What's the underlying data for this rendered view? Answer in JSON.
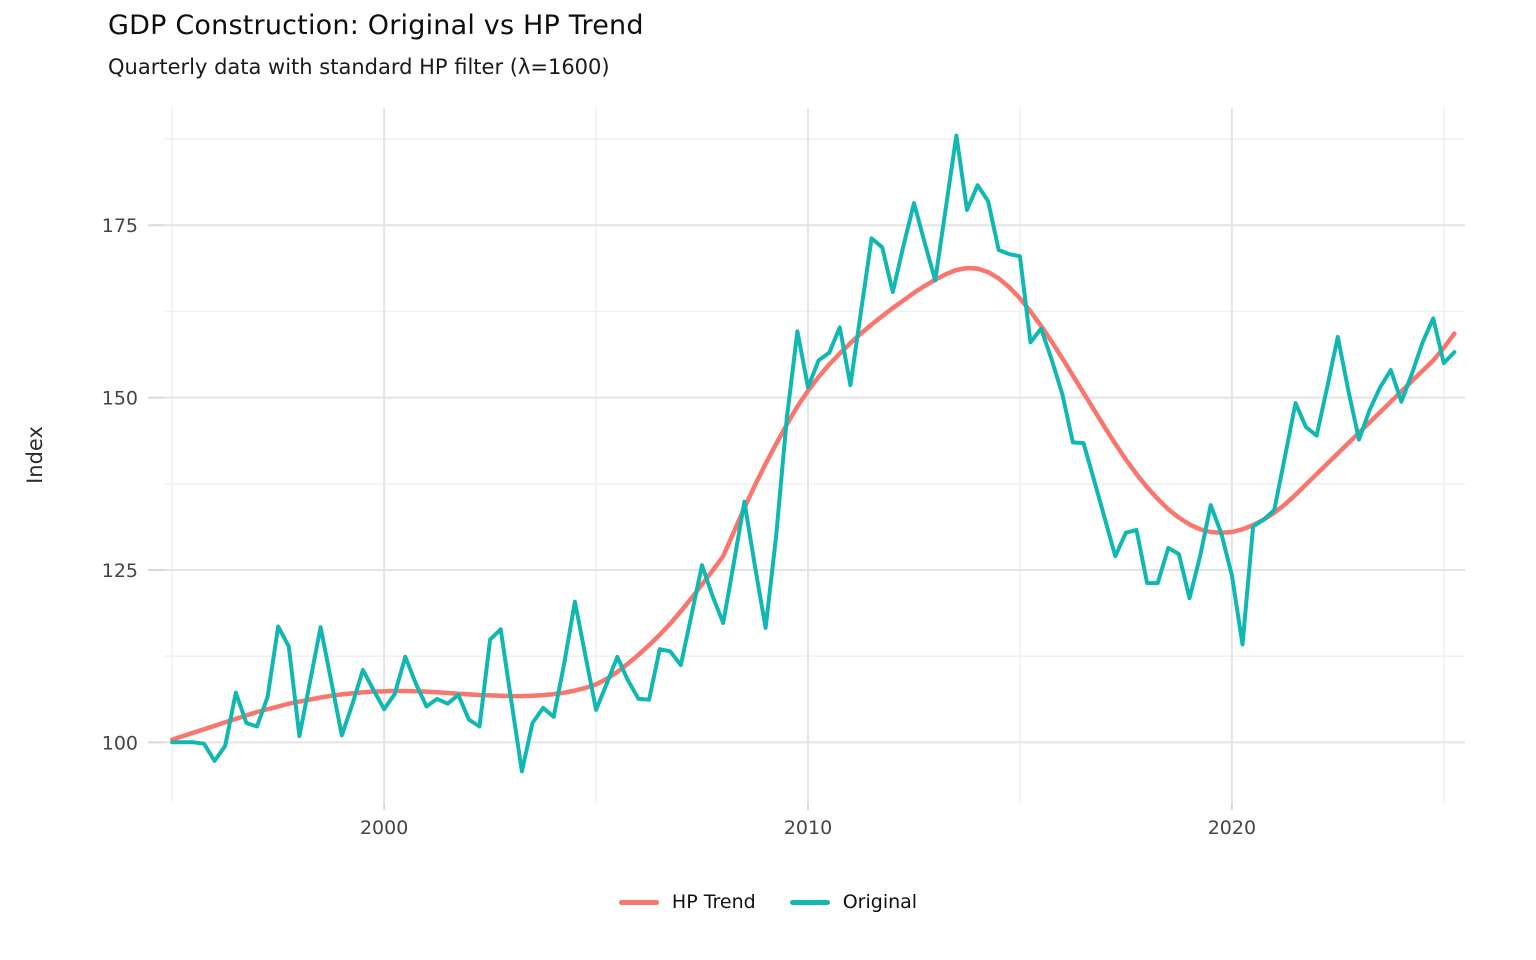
{
  "header": {
    "title": "GDP Construction: Original vs HP Trend",
    "subtitle": "Quarterly data with standard HP filter (λ=1600)"
  },
  "chart_data": {
    "type": "line",
    "title": "GDP Construction: Original vs HP Trend",
    "subtitle": "Quarterly data with standard HP filter (λ=1600)",
    "xlabel": "",
    "ylabel": "Index",
    "x_start": 1995.0,
    "x_step": 0.25,
    "x_end": 2025.25,
    "xlim": [
      1994.83,
      2025.5
    ],
    "ylim": [
      91.2,
      192.0
    ],
    "x_ticks": [
      2000,
      2010,
      2020
    ],
    "x_minor_ticks": [
      1995,
      2005,
      2015,
      2025
    ],
    "y_ticks": [
      100,
      125,
      150,
      175
    ],
    "y_minor_ticks": [
      112.5,
      137.5,
      162.5,
      187.5
    ],
    "grid": true,
    "legend_position": "bottom",
    "colors": {
      "background": "#ffffff",
      "grid_major": "#e4e4e4",
      "grid_minor": "#f1f1f1",
      "tick_mark": "#dadada",
      "tick_label": "#454545",
      "hp_trend": "#F8766D",
      "original": "#11B8B2"
    },
    "series": [
      {
        "name": "HP Trend",
        "color": "#F8766D",
        "width": 4.5,
        "values": [
          100.4,
          100.9,
          101.4,
          101.9,
          102.4,
          102.9,
          103.4,
          103.9,
          104.4,
          104.8,
          105.2,
          105.6,
          105.9,
          106.2,
          106.5,
          106.75,
          106.95,
          107.1,
          107.25,
          107.35,
          107.4,
          107.45,
          107.45,
          107.4,
          107.35,
          107.25,
          107.15,
          107.05,
          106.95,
          106.85,
          106.8,
          106.75,
          106.7,
          106.7,
          106.75,
          106.85,
          107.0,
          107.2,
          107.5,
          107.9,
          108.4,
          109.2,
          110.2,
          111.4,
          112.7,
          114.1,
          115.6,
          117.2,
          119.0,
          120.9,
          122.9,
          124.9,
          127.0,
          130.5,
          134.0,
          137.3,
          140.4,
          143.3,
          146.1,
          148.7,
          151.0,
          153.0,
          154.8,
          156.4,
          157.9,
          159.3,
          160.6,
          161.8,
          163.0,
          164.1,
          165.2,
          166.2,
          167.1,
          167.9,
          168.5,
          168.8,
          168.7,
          168.2,
          167.3,
          166.0,
          164.4,
          162.5,
          160.4,
          158.1,
          155.7,
          153.2,
          150.7,
          148.2,
          145.7,
          143.3,
          141.0,
          138.9,
          137.0,
          135.3,
          133.8,
          132.6,
          131.6,
          130.9,
          130.5,
          130.4,
          130.5,
          130.9,
          131.5,
          132.3,
          133.3,
          134.5,
          135.9,
          137.4,
          138.9,
          140.4,
          141.9,
          143.4,
          144.9,
          146.4,
          147.9,
          149.4,
          150.9,
          152.4,
          153.9,
          155.4,
          157.2,
          159.3
        ]
      },
      {
        "name": "Original",
        "color": "#11B8B2",
        "width": 4,
        "values": [
          100.0,
          100.0,
          100.0,
          99.8,
          97.3,
          99.5,
          107.2,
          102.8,
          102.3,
          106.6,
          116.8,
          113.9,
          100.9,
          108.8,
          116.7,
          108.9,
          101.0,
          105.5,
          110.5,
          107.6,
          104.8,
          107.0,
          112.4,
          108.5,
          105.2,
          106.3,
          105.6,
          106.9,
          103.3,
          102.3,
          114.9,
          116.4,
          106.0,
          95.8,
          102.8,
          105.0,
          103.7,
          111.5,
          120.4,
          112.5,
          104.7,
          108.5,
          112.4,
          109.0,
          106.3,
          106.2,
          113.5,
          113.2,
          111.2,
          118.4,
          125.7,
          121.2,
          117.3,
          126.0,
          134.9,
          125.5,
          116.6,
          130.0,
          147.0,
          159.6,
          151.5,
          155.4,
          156.5,
          160.2,
          151.8,
          162.5,
          173.1,
          171.8,
          165.3,
          172.0,
          178.2,
          172.5,
          167.0,
          177.5,
          188.0,
          177.2,
          180.8,
          178.5,
          171.4,
          170.8,
          170.5,
          158.0,
          160.0,
          155.5,
          150.5,
          143.5,
          143.4,
          138.0,
          132.5,
          127.0,
          130.4,
          130.8,
          123.1,
          123.1,
          128.2,
          127.3,
          120.9,
          127.0,
          134.4,
          130.3,
          124.2,
          114.2,
          131.3,
          132.3,
          133.7,
          141.4,
          149.2,
          145.7,
          144.5,
          151.5,
          158.8,
          151.0,
          143.9,
          148.2,
          151.5,
          154.0,
          149.4,
          153.5,
          158.0,
          161.5,
          155.0,
          156.6
        ]
      }
    ]
  }
}
